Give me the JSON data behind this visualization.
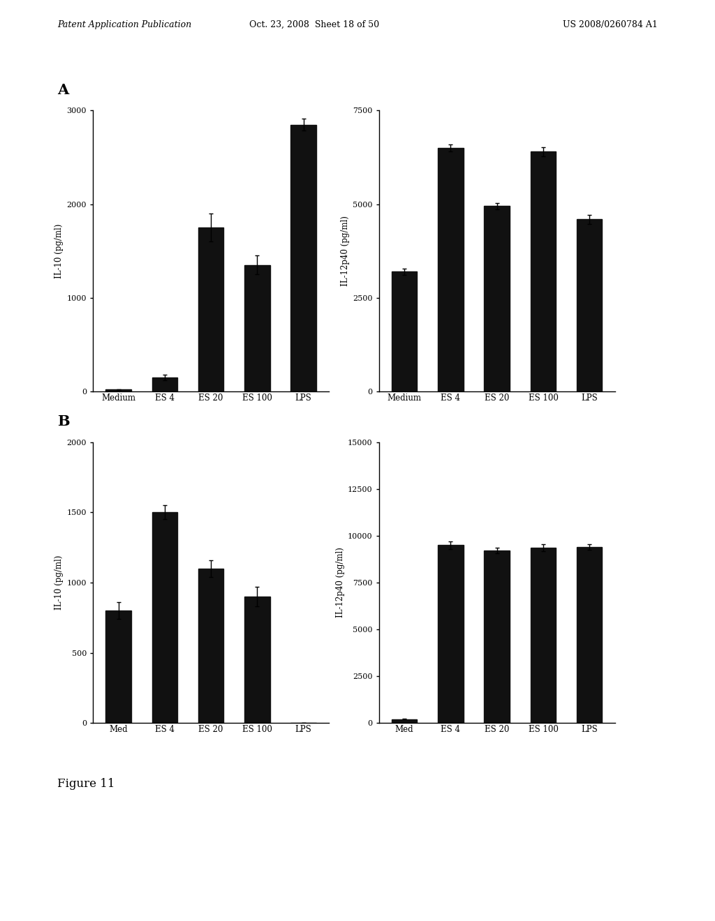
{
  "panel_A_IL10": {
    "categories": [
      "Medium",
      "ES 4",
      "ES 20",
      "ES 100",
      "LPS"
    ],
    "values": [
      20,
      150,
      1750,
      1350,
      2850
    ],
    "errors": [
      5,
      30,
      150,
      100,
      60
    ],
    "ylabel": "IL-10 (pg/ml)",
    "ylim": [
      0,
      3000
    ],
    "yticks": [
      0,
      1000,
      2000,
      3000
    ]
  },
  "panel_A_IL12": {
    "categories": [
      "Medium",
      "ES 4",
      "ES 20",
      "ES 100",
      "LPS"
    ],
    "values": [
      3200,
      6500,
      4950,
      6400,
      4600
    ],
    "errors": [
      80,
      100,
      80,
      120,
      120
    ],
    "ylabel": "IL-12p40 (pg/ml)",
    "ylim": [
      0,
      7500
    ],
    "yticks": [
      0,
      2500,
      5000,
      7500
    ]
  },
  "panel_B_IL10": {
    "categories": [
      "Med",
      "ES 4",
      "ES 20",
      "ES 100",
      "LPS"
    ],
    "values": [
      800,
      1500,
      1100,
      900,
      0
    ],
    "errors": [
      60,
      50,
      60,
      70,
      0
    ],
    "ylabel": "IL-10 (pg/ml)",
    "ylim": [
      0,
      2000
    ],
    "yticks": [
      0,
      500,
      1000,
      1500,
      2000
    ]
  },
  "panel_B_IL12": {
    "categories": [
      "Med",
      "ES 4",
      "ES 20",
      "ES 100",
      "LPS"
    ],
    "values": [
      200,
      9500,
      9200,
      9350,
      9400
    ],
    "errors": [
      20,
      200,
      150,
      180,
      150
    ],
    "ylabel": "IL-12p40 (pg/ml)",
    "ylim": [
      0,
      15000
    ],
    "yticks": [
      0,
      2500,
      5000,
      7500,
      10000,
      12500,
      15000
    ]
  },
  "bar_color": "#111111",
  "figure_caption": "Figure 11",
  "header_left": "Patent Application Publication",
  "header_middle": "Oct. 23, 2008  Sheet 18 of 50",
  "header_right": "US 2008/0260784 A1",
  "label_A": "A",
  "label_B": "B"
}
